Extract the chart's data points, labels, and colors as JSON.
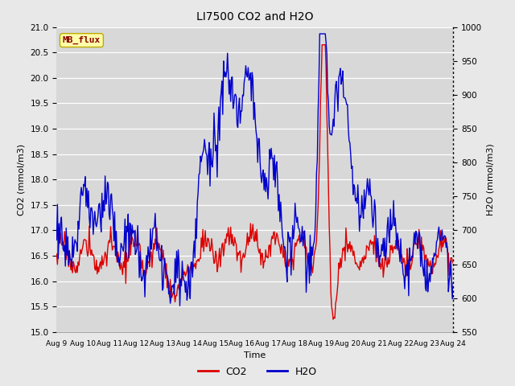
{
  "title": "LI7500 CO2 and H2O",
  "xlabel": "Time",
  "ylabel_left": "CO2 (mmol/m3)",
  "ylabel_right": "H2O (mmol/m3)",
  "watermark_text": "MB_flux",
  "co2_ylim": [
    15.0,
    21.0
  ],
  "h2o_ylim": [
    550,
    1000
  ],
  "co2_color": "#dd0000",
  "h2o_color": "#0000cc",
  "bg_color": "#e8e8e8",
  "plot_bg": "#d8d8d8",
  "grid_color": "#f0f0f0",
  "line_width": 1.0,
  "x_tick_labels": [
    "Aug 9",
    "Aug 10",
    "Aug 11",
    "Aug 12",
    "Aug 13",
    "Aug 14",
    "Aug 15",
    "Aug 16",
    "Aug 17",
    "Aug 18",
    "Aug 19",
    "Aug 20",
    "Aug 21",
    "Aug 22",
    "Aug 23",
    "Aug 24"
  ],
  "n_points": 500
}
